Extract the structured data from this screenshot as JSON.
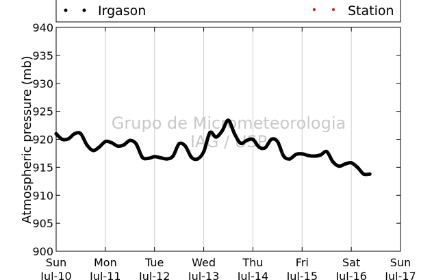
{
  "chart_data": {
    "type": "line",
    "title": "",
    "xlabel": "",
    "ylabel": "Atmospheric pressure (mb)",
    "ylim": [
      900,
      940
    ],
    "yticks": [
      900,
      905,
      910,
      915,
      920,
      925,
      930,
      935,
      940
    ],
    "xlim": [
      "2011-07-10",
      "2011-07-17"
    ],
    "xticks": [
      {
        "day": "Sun",
        "date": "Jul-10"
      },
      {
        "day": "Mon",
        "date": "Jul-11"
      },
      {
        "day": "Tue",
        "date": "Jul-12"
      },
      {
        "day": "Wed",
        "date": "Jul-13"
      },
      {
        "day": "Thu",
        "date": "Jul-14"
      },
      {
        "day": "Fri",
        "date": "Jul-15"
      },
      {
        "day": "Sat",
        "date": "Jul-16"
      },
      {
        "day": "Sun",
        "date": "Jul-17"
      }
    ],
    "grid": "vertical",
    "legend_position": "top",
    "watermark": [
      "Grupo de Micrometeorologia",
      "IAG / USP"
    ],
    "series": [
      {
        "name": "Irgason",
        "color": "#000000",
        "x": [
          "2011-07-10 00:00",
          "2011-07-10 03:00",
          "2011-07-10 06:00",
          "2011-07-10 09:00",
          "2011-07-10 12:00",
          "2011-07-10 15:00",
          "2011-07-10 18:00",
          "2011-07-10 21:00",
          "2011-07-11 00:00",
          "2011-07-11 03:00",
          "2011-07-11 06:00",
          "2011-07-11 09:00",
          "2011-07-11 12:00",
          "2011-07-11 15:00",
          "2011-07-11 18:00",
          "2011-07-11 21:00",
          "2011-07-12 00:00",
          "2011-07-12 03:00",
          "2011-07-12 06:00",
          "2011-07-12 09:00",
          "2011-07-12 12:00",
          "2011-07-12 15:00",
          "2011-07-12 18:00",
          "2011-07-12 21:00",
          "2011-07-13 00:00",
          "2011-07-13 03:00",
          "2011-07-13 06:00",
          "2011-07-13 09:00",
          "2011-07-13 12:00",
          "2011-07-13 15:00",
          "2011-07-13 18:00",
          "2011-07-13 21:00",
          "2011-07-14 00:00",
          "2011-07-14 03:00",
          "2011-07-14 06:00",
          "2011-07-14 09:00",
          "2011-07-14 12:00",
          "2011-07-14 15:00",
          "2011-07-14 18:00",
          "2011-07-14 21:00",
          "2011-07-15 00:00",
          "2011-07-15 03:00",
          "2011-07-15 06:00",
          "2011-07-15 09:00",
          "2011-07-15 12:00",
          "2011-07-15 15:00",
          "2011-07-15 18:00",
          "2011-07-15 21:00",
          "2011-07-16 00:00",
          "2011-07-16 03:00",
          "2011-07-16 06:00",
          "2011-07-16 09:00"
        ],
        "values": [
          921.0,
          920.0,
          920.1,
          921.0,
          921.0,
          919.0,
          918.0,
          918.6,
          919.6,
          919.4,
          918.8,
          919.0,
          919.8,
          919.2,
          916.8,
          916.6,
          916.9,
          916.7,
          916.5,
          917.0,
          919.2,
          918.8,
          916.8,
          916.5,
          917.8,
          921.2,
          920.4,
          921.5,
          923.4,
          921.0,
          919.3,
          919.8,
          920.0,
          918.6,
          918.5,
          920.0,
          919.6,
          917.0,
          916.5,
          917.3,
          917.4,
          917.1,
          917.0,
          917.2,
          917.8,
          916.0,
          915.2,
          915.6,
          915.8,
          915.0,
          913.8,
          913.8
        ]
      },
      {
        "name": "Station",
        "color": "#ff0000",
        "x": [],
        "values": []
      }
    ]
  }
}
